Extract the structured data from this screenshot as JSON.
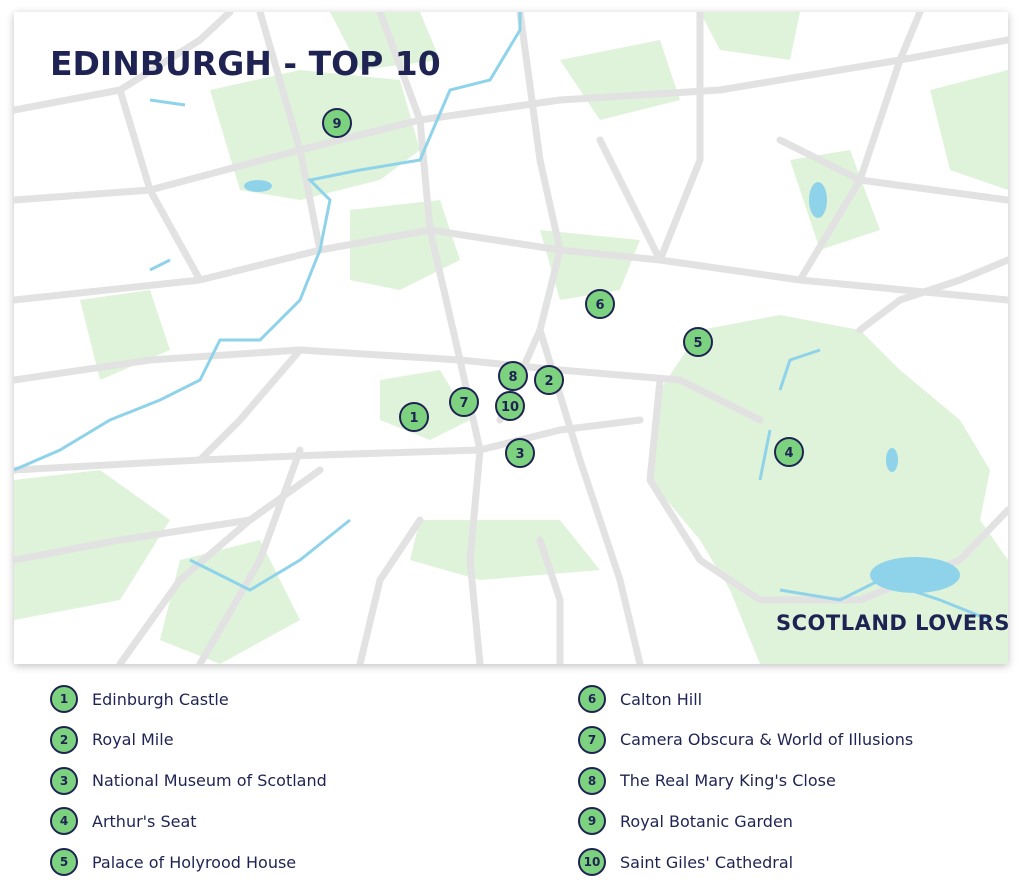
{
  "title": "EDINBURGH - TOP 10",
  "logo": "SCOTLAND LOVERS",
  "colors": {
    "navy": "#1f2353",
    "marker_green": "#7dd27f",
    "park": "#dff3da",
    "road": "#e2e2e2",
    "water": "#8fd3ea"
  },
  "places": [
    {
      "num": "1",
      "name": "Edinburgh Castle"
    },
    {
      "num": "2",
      "name": "Royal Mile"
    },
    {
      "num": "3",
      "name": "National Museum of Scotland"
    },
    {
      "num": "4",
      "name": "Arthur's Seat"
    },
    {
      "num": "5",
      "name": "Palace of Holyrood House"
    },
    {
      "num": "6",
      "name": "Calton Hill"
    },
    {
      "num": "7",
      "name": "Camera Obscura & World of Illusions"
    },
    {
      "num": "8",
      "name": "The Real Mary King's Close"
    },
    {
      "num": "9",
      "name": "Royal Botanic Garden"
    },
    {
      "num": "10",
      "name": "Saint Giles' Cathedral"
    }
  ]
}
